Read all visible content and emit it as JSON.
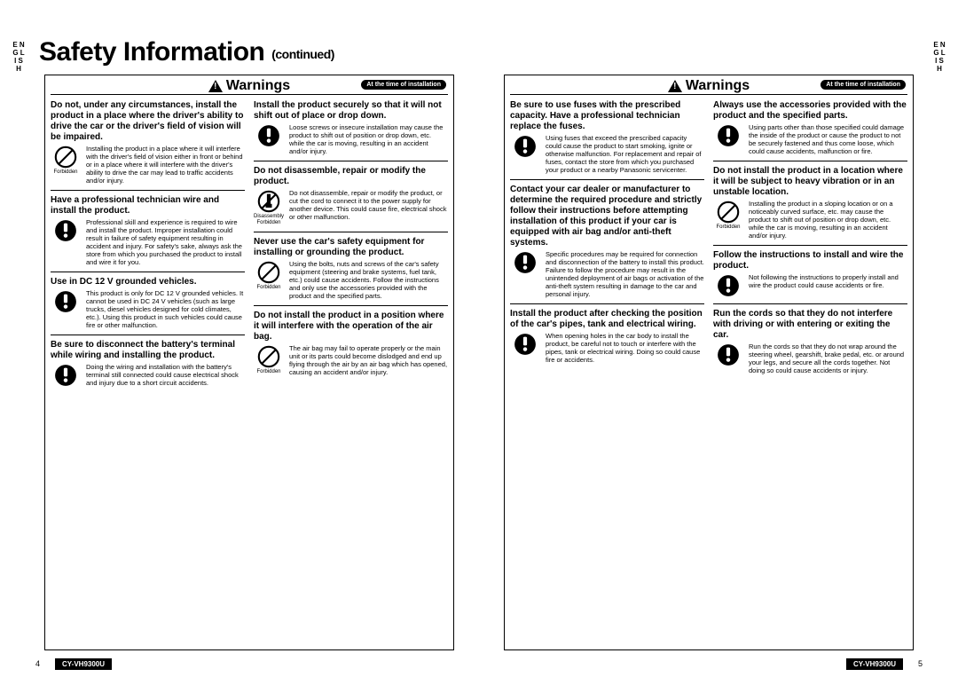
{
  "lang_tab": "E\nN\nG\nL\nI\nS\nH",
  "page_title": "Safety Information",
  "page_title_suffix": "(continued)",
  "banner_label": "Warnings",
  "banner_chip": "At the time of installation",
  "page_number_left": "4",
  "page_number_right": "5",
  "model": "CY-VH9300U",
  "icons": {
    "forbidden": "Forbidden",
    "mandatory": "",
    "disassembly": "Disassembly\nForbidden"
  },
  "columns": [
    [
      {
        "heading": "Do not, under any circumstances, install the product in a place where the driver's ability to drive the car or the driver's field of vision will be impaired.",
        "icon": "forbidden",
        "icon_label": "Forbidden",
        "text": "Installing the product in a place where it will interfere with the driver's field of vision either in front or behind or in a place where it will interfere with the driver's ability to drive the car may lead to traffic accidents and/or injury."
      },
      {
        "heading": "Have a professional technician wire and install the product.",
        "icon": "mandatory",
        "icon_label": "",
        "text": "Professional skill and experience is required to wire and install the product. Improper installation could result in failure of safety equipment resulting in accident and injury. For safety's sake, always ask the store from which you purchased the product to install and wire it for you."
      },
      {
        "heading": "Use in DC 12 V     grounded vehicles.",
        "icon": "mandatory",
        "icon_label": "",
        "text": "This product is only for DC 12 V grounded vehicles. It cannot be used in DC 24 V vehicles (such as large trucks, diesel vehicles designed for cold climates, etc.). Using this product in such vehicles could cause fire or other malfunction."
      },
      {
        "heading": "Be sure to disconnect the battery's terminal while wiring and installing the product.",
        "icon": "mandatory",
        "icon_label": "",
        "text": "Doing the wiring and installation with the battery's    terminal still connected could cause electrical shock and injury due to a short circuit accidents."
      }
    ],
    [
      {
        "heading": "Install the product securely so that it will not shift out of place or drop down.",
        "icon": "mandatory",
        "icon_label": "",
        "text": "Loose screws or insecure installation may cause the product to shift out of position or drop down, etc. while the car is moving, resulting in an accident and/or injury."
      },
      {
        "heading": "Do not disassemble, repair or modify the product.",
        "icon": "disassembly",
        "icon_label": "Disassembly Forbidden",
        "text": "Do not disassemble, repair or modify the product, or cut the cord to connect it to the power supply for another device. This could cause fire, electrical shock or other malfunction."
      },
      {
        "heading": "Never use the car's safety equipment for installing or grounding the product.",
        "icon": "forbidden",
        "icon_label": "Forbidden",
        "text": "Using the bolts, nuts and screws of the car's safety equipment (steering and brake systems, fuel tank, etc.) could cause accidents. Follow the instructions and only use the accessories provided with the product and the specified parts."
      },
      {
        "heading": "Do not install the product in a position where it will interfere with the operation of the air bag.",
        "icon": "forbidden",
        "icon_label": "Forbidden",
        "text": "The air bag may fail to operate properly or the main unit or its parts could become dislodged and end up flying through the air by an air bag which has opened, causing an accident and/or injury."
      }
    ],
    [
      {
        "heading": "Be sure to use fuses with the prescribed capacity. Have a professional technician replace the fuses.",
        "icon": "mandatory",
        "icon_label": "",
        "text": "Using fuses that exceed the prescribed capacity could cause the product to start smoking, ignite or otherwise malfunction. For replacement and repair of fuses, contact the store from which you purchased your product or a nearby Panasonic servicenter."
      },
      {
        "heading": "Contact your car dealer or manufacturer to determine the required procedure and strictly follow their instructions before attempting installation of this product if your car is equipped with air bag and/or anti-theft systems.",
        "icon": "mandatory",
        "icon_label": "",
        "text": "Specific procedures may be required for connection and disconnection of the battery to install this product. Failure to follow the procedure may result in the unintended deployment of air bags or activation of the anti-theft system resulting in damage to the car and personal injury."
      },
      {
        "heading": "Install the product after checking the position of the car's pipes, tank and electrical wiring.",
        "icon": "mandatory",
        "icon_label": "",
        "text": "When opening holes in the car body to install the product, be careful not to touch or interfere with the pipes, tank or electrical wiring. Doing so could cause fire or accidents."
      }
    ],
    [
      {
        "heading": "Always use the accessories provided with the product and the specified parts.",
        "icon": "mandatory",
        "icon_label": "",
        "text": "Using parts other than those specified could damage the inside of the product or cause the product to not be securely fastened and thus come loose, which could cause accidents, malfunction or fire."
      },
      {
        "heading": "Do not install the product in a location where it will be subject to heavy vibration or in an unstable location.",
        "icon": "forbidden",
        "icon_label": "Forbidden",
        "text": "Installing the product in a sloping location or on a noticeably curved surface, etc. may cause the product to shift out of position or drop down, etc. while the car is moving, resulting in an accident and/or injury."
      },
      {
        "heading": "Follow the instructions to install and wire the product.",
        "icon": "mandatory",
        "icon_label": "",
        "text": "Not following the instructions to properly install and wire the product could cause accidents or fire."
      },
      {
        "heading": "Run the cords so that they do not interfere with driving or with entering or exiting the car.",
        "icon": "mandatory",
        "icon_label": "",
        "text": "Run the cords so that they do not wrap around the steering wheel, gearshift, brake pedal, etc. or around your legs, and secure all the cords together. Not doing so could cause accidents or injury."
      }
    ]
  ]
}
